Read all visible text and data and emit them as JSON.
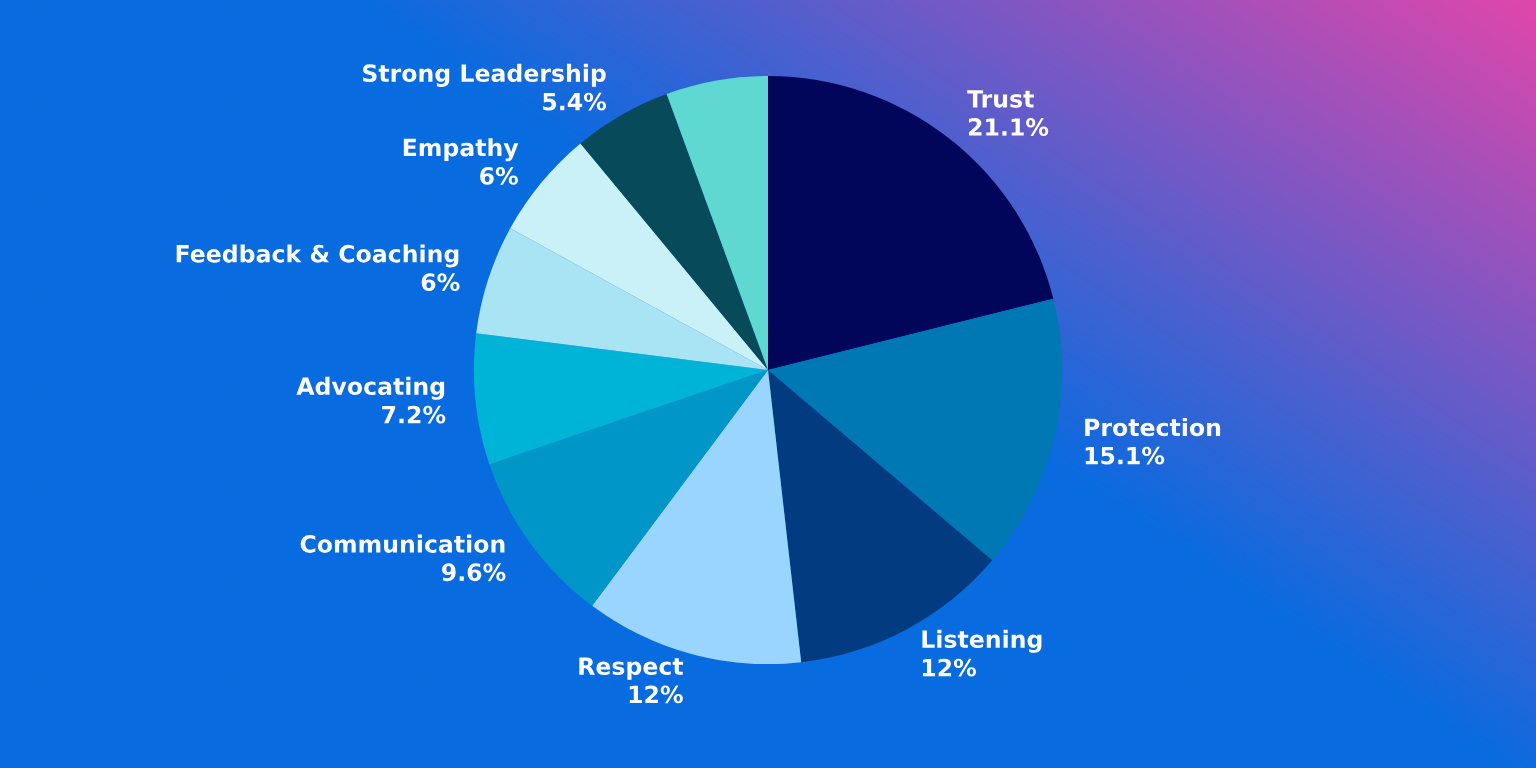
{
  "chart_data": {
    "type": "pie",
    "categories": [
      "Trust",
      "Protection",
      "Listening",
      "Respect",
      "Communication",
      "Advocating",
      "Feedback & Coaching",
      "Empathy",
      "Strong Leadership",
      null
    ],
    "values": [
      21.1,
      15.1,
      12,
      12,
      9.6,
      7.2,
      6,
      6,
      5.4,
      5.6
    ],
    "value_labels": [
      "21.1%",
      "15.1%",
      "12%",
      "12%",
      "9.6%",
      "7.2%",
      "6%",
      "6%",
      "5.4%",
      null
    ],
    "colors": [
      "#02065a",
      "#0078b4",
      "#033b80",
      "#99d5ff",
      "#0096c8",
      "#00b4d8",
      "#a8e4f4",
      "#caf0f8",
      "#074a5a",
      "#5fd8d2"
    ],
    "legend": false
  }
}
